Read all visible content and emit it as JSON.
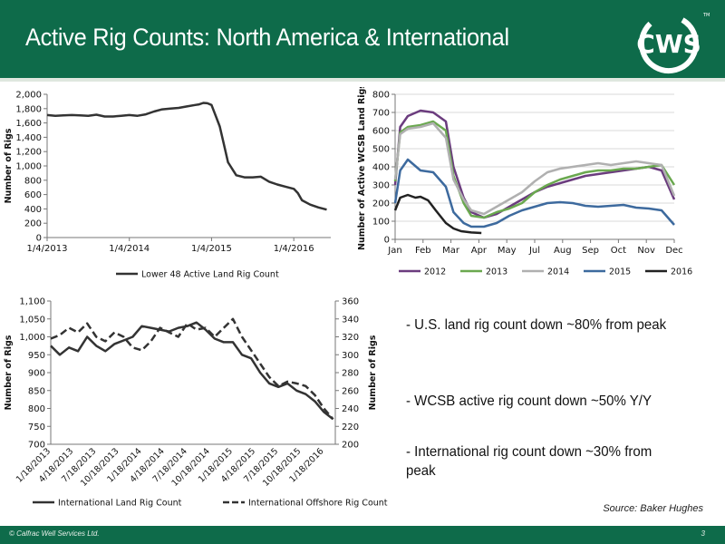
{
  "slide": {
    "title": "Active Rig Counts: North America & International",
    "logo_text": "CWS",
    "logo_tm": "TM",
    "footer": "© Calfrac Well Services Ltd.",
    "page_number": "3",
    "source": "Source: Baker Hughes",
    "bullets": [
      "- U.S. land rig count down ~80% from peak",
      "- WCSB active rig count down ~50% Y/Y",
      "- International rig count down ~30% from peak"
    ],
    "colors": {
      "brand_green": "#0e6b4a",
      "white": "#ffffff"
    }
  },
  "chart_data": [
    {
      "type": "line",
      "ylabel": "Number of Rigs",
      "ylim": [
        0,
        2000
      ],
      "yticks": [
        "0",
        "200",
        "400",
        "600",
        "800",
        "1,000",
        "1,200",
        "1,400",
        "1,600",
        "1,800",
        "2,000"
      ],
      "xticks": [
        "1/4/2013",
        "1/4/2014",
        "1/4/2015",
        "1/4/2016"
      ],
      "xlim": [
        0,
        3.45
      ],
      "legend_position": "bottom",
      "series": [
        {
          "name": "Lower 48 Active Land Rig Count",
          "color": "#333333",
          "x": [
            0,
            0.1,
            0.2,
            0.3,
            0.4,
            0.5,
            0.6,
            0.7,
            0.8,
            0.9,
            1.0,
            1.1,
            1.2,
            1.3,
            1.4,
            1.5,
            1.6,
            1.7,
            1.8,
            1.85,
            1.9,
            1.95,
            2.0,
            2.05,
            2.1,
            2.15,
            2.2,
            2.3,
            2.4,
            2.5,
            2.6,
            2.7,
            2.8,
            2.9,
            3.0,
            3.05,
            3.1,
            3.2,
            3.3,
            3.4
          ],
          "y": [
            1710,
            1700,
            1705,
            1710,
            1705,
            1700,
            1715,
            1690,
            1690,
            1700,
            1710,
            1700,
            1720,
            1760,
            1790,
            1800,
            1810,
            1830,
            1850,
            1860,
            1880,
            1875,
            1850,
            1700,
            1550,
            1300,
            1050,
            870,
            840,
            840,
            850,
            780,
            740,
            710,
            680,
            620,
            520,
            460,
            420,
            390
          ]
        }
      ]
    },
    {
      "type": "line",
      "ylabel": "Number of Active WCSB Land Rigs",
      "ylim": [
        0,
        800
      ],
      "yticks": [
        "0",
        "100",
        "200",
        "300",
        "400",
        "500",
        "600",
        "700",
        "800"
      ],
      "xticks": [
        "Jan",
        "Feb",
        "Mar",
        "Apr",
        "May",
        "Jul",
        "Aug",
        "Sep",
        "Oct",
        "Nov",
        "Dec"
      ],
      "xlim": [
        0,
        11
      ],
      "legend_position": "bottom",
      "series": [
        {
          "name": "2012",
          "color": "#6b3c7e",
          "x": [
            0,
            0.2,
            0.5,
            1,
            1.5,
            2,
            2.3,
            2.7,
            3,
            3.5,
            4,
            4.5,
            5,
            5.5,
            6,
            6.5,
            7,
            7.5,
            8,
            8.5,
            9,
            9.5,
            10,
            10.5,
            11
          ],
          "y": [
            300,
            620,
            680,
            710,
            700,
            650,
            400,
            230,
            150,
            120,
            140,
            180,
            220,
            260,
            290,
            310,
            330,
            350,
            360,
            370,
            380,
            390,
            400,
            380,
            220
          ]
        },
        {
          "name": "2013",
          "color": "#6aa84f",
          "x": [
            0,
            0.2,
            0.5,
            1,
            1.5,
            2,
            2.3,
            2.7,
            3,
            3.5,
            4,
            4.5,
            5,
            5.5,
            6,
            6.5,
            7,
            7.5,
            8,
            8.5,
            9,
            9.5,
            10,
            10.5,
            11
          ],
          "y": [
            320,
            590,
            620,
            630,
            650,
            600,
            350,
            200,
            130,
            120,
            150,
            170,
            200,
            260,
            300,
            330,
            350,
            370,
            380,
            380,
            390,
            390,
            400,
            410,
            300
          ]
        },
        {
          "name": "2014",
          "color": "#b0b0b0",
          "x": [
            0,
            0.2,
            0.5,
            1,
            1.5,
            2,
            2.3,
            2.7,
            3,
            3.5,
            4,
            4.5,
            5,
            5.5,
            6,
            6.5,
            7,
            7.5,
            8,
            8.5,
            9,
            9.5,
            10,
            10.5,
            11
          ],
          "y": [
            330,
            580,
            610,
            620,
            640,
            560,
            330,
            220,
            160,
            140,
            180,
            220,
            260,
            320,
            370,
            390,
            400,
            410,
            420,
            410,
            420,
            430,
            420,
            410,
            240
          ]
        },
        {
          "name": "2015",
          "color": "#3d6a9e",
          "x": [
            0,
            0.2,
            0.5,
            1,
            1.5,
            2,
            2.3,
            2.7,
            3,
            3.5,
            4,
            4.5,
            5,
            5.5,
            6,
            6.5,
            7,
            7.5,
            8,
            8.5,
            9,
            9.5,
            10,
            10.5,
            11
          ],
          "y": [
            200,
            380,
            440,
            380,
            370,
            290,
            150,
            90,
            70,
            70,
            90,
            130,
            160,
            180,
            200,
            205,
            200,
            185,
            180,
            185,
            190,
            175,
            170,
            160,
            80
          ]
        },
        {
          "name": "2016",
          "color": "#222222",
          "x": [
            0,
            0.2,
            0.5,
            0.8,
            1,
            1.3,
            1.6,
            2,
            2.3,
            2.6,
            3,
            3.4
          ],
          "y": [
            160,
            230,
            245,
            230,
            235,
            215,
            160,
            90,
            60,
            45,
            38,
            35
          ]
        }
      ]
    },
    {
      "type": "line",
      "ylabel": "Number of Rigs",
      "y2label": "Number of Rigs",
      "ylim": [
        700,
        1100
      ],
      "y2lim": [
        200,
        360
      ],
      "yticks": [
        "700",
        "750",
        "800",
        "850",
        "900",
        "950",
        "1,000",
        "1,050",
        "1,100"
      ],
      "y2ticks": [
        "200",
        "220",
        "240",
        "260",
        "280",
        "300",
        "320",
        "340",
        "360"
      ],
      "xticks": [
        "1/18/2013",
        "4/18/2013",
        "7/18/2013",
        "10/18/2013",
        "1/18/2014",
        "4/18/2014",
        "7/18/2014",
        "10/18/2014",
        "1/18/2015",
        "4/18/2015",
        "7/18/2015",
        "10/18/2015",
        "1/18/2016"
      ],
      "xlim": [
        0,
        12.5
      ],
      "legend_position": "bottom",
      "series": [
        {
          "name": "International Land Rig Count",
          "axis": "left",
          "dash": false,
          "color": "#333333",
          "x": [
            0,
            0.4,
            0.8,
            1.2,
            1.6,
            2,
            2.4,
            2.8,
            3.2,
            3.6,
            4,
            4.4,
            4.8,
            5.2,
            5.6,
            6,
            6.4,
            6.8,
            7.2,
            7.6,
            8,
            8.4,
            8.8,
            9.2,
            9.6,
            10,
            10.4,
            10.8,
            11.2,
            11.6,
            12,
            12.4
          ],
          "y": [
            975,
            950,
            970,
            960,
            1000,
            975,
            960,
            980,
            990,
            1000,
            1030,
            1025,
            1020,
            1015,
            1025,
            1030,
            1040,
            1020,
            995,
            985,
            985,
            950,
            940,
            900,
            870,
            860,
            870,
            850,
            840,
            820,
            790,
            770
          ]
        },
        {
          "name": "International Offshore Rig Count",
          "axis": "right",
          "dash": true,
          "color": "#333333",
          "x": [
            0,
            0.4,
            0.8,
            1.2,
            1.6,
            2,
            2.4,
            2.8,
            3.2,
            3.6,
            4,
            4.4,
            4.8,
            5.2,
            5.6,
            6,
            6.4,
            6.8,
            7.2,
            7.6,
            8,
            8.4,
            8.8,
            9.2,
            9.6,
            10,
            10.4,
            10.8,
            11.2,
            11.6,
            12,
            12.4
          ],
          "y": [
            318,
            322,
            330,
            325,
            335,
            320,
            315,
            325,
            320,
            308,
            305,
            315,
            330,
            325,
            320,
            335,
            328,
            330,
            320,
            330,
            340,
            320,
            305,
            290,
            275,
            265,
            270,
            268,
            265,
            255,
            240,
            228
          ]
        }
      ]
    }
  ]
}
